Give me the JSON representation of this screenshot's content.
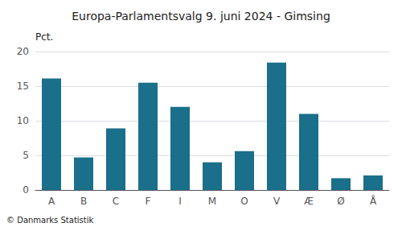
{
  "chart_data": {
    "type": "bar",
    "title": "Europa-Parlamentsvalg 9. juni 2024 - Gimsing",
    "ylabel": "Pct.",
    "annotations": [
      "© Danmarks Statistik"
    ],
    "categories": [
      "A",
      "B",
      "C",
      "F",
      "I",
      "M",
      "O",
      "V",
      "Æ",
      "Ø",
      "Å"
    ],
    "values": [
      16.1,
      4.7,
      8.9,
      15.5,
      12.0,
      4.0,
      5.6,
      18.4,
      11.0,
      1.7,
      2.1
    ],
    "color": "#1a6f8a",
    "ylim": [
      0,
      20
    ],
    "yticks": [
      0,
      5,
      10,
      15,
      20
    ],
    "grid": true
  }
}
